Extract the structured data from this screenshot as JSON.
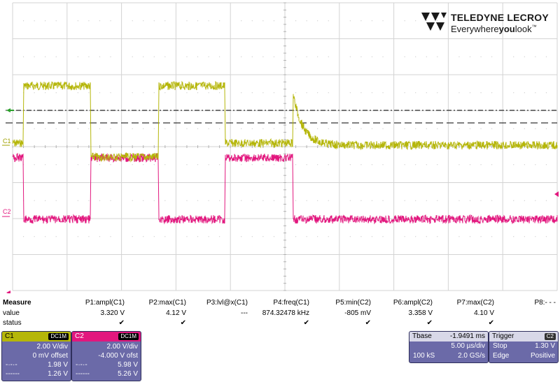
{
  "brand": {
    "name": "TELEDYNE LECROY",
    "tagline_pre": "Everywhere",
    "tagline_bold": "you",
    "tagline_post": "look",
    "tm": "™"
  },
  "colors": {
    "ch1": "#b5b60a",
    "ch2": "#e2177e",
    "box": "#6b6aa8",
    "grid": "#bdbdbd"
  },
  "screen": {
    "ch1_label": "C1",
    "ch2_label": "C2"
  },
  "measure": {
    "title": "Measure",
    "row_value": "value",
    "row_status": "status",
    "params": [
      {
        "name": "P1:ampl(C1)",
        "value": "3.320 V",
        "status": "check"
      },
      {
        "name": "P2:max(C1)",
        "value": "4.12 V",
        "status": "check"
      },
      {
        "name": "P3:lvl@x(C1)",
        "value": "---",
        "status": ""
      },
      {
        "name": "P4:freq(C1)",
        "value": "874.32478 kHz",
        "status": "check"
      },
      {
        "name": "P5:min(C2)",
        "value": "-805 mV",
        "status": "check"
      },
      {
        "name": "P6:ampl(C2)",
        "value": "3.358 V",
        "status": "check"
      },
      {
        "name": "P7:max(C2)",
        "value": "4.10 V",
        "status": "check"
      },
      {
        "name": "P8:- - -",
        "value": "",
        "status": ""
      }
    ]
  },
  "ch1": {
    "name": "C1",
    "coupling": "DC1M",
    "vdiv": "2.00 V/div",
    "offset": "0 mV offset",
    "cur1_val": "1.98 V",
    "cur2_val": "1.26 V"
  },
  "ch2": {
    "name": "C2",
    "coupling": "DC1M",
    "vdiv": "2.00 V/div",
    "offset": "-4.000 V ofst",
    "cur1_val": "5.98 V",
    "cur2_val": "5.26 V"
  },
  "tbase": {
    "label": "Tbase",
    "delay": "-1.9491 ms",
    "tdiv": "5.00 µs/div",
    "samples": "100 kS",
    "rate": "2.0 GS/s"
  },
  "trigger": {
    "label": "Trigger",
    "source": "C2",
    "mode": "Stop",
    "level": "1.30 V",
    "type": "Edge",
    "slope": "Positive"
  }
}
